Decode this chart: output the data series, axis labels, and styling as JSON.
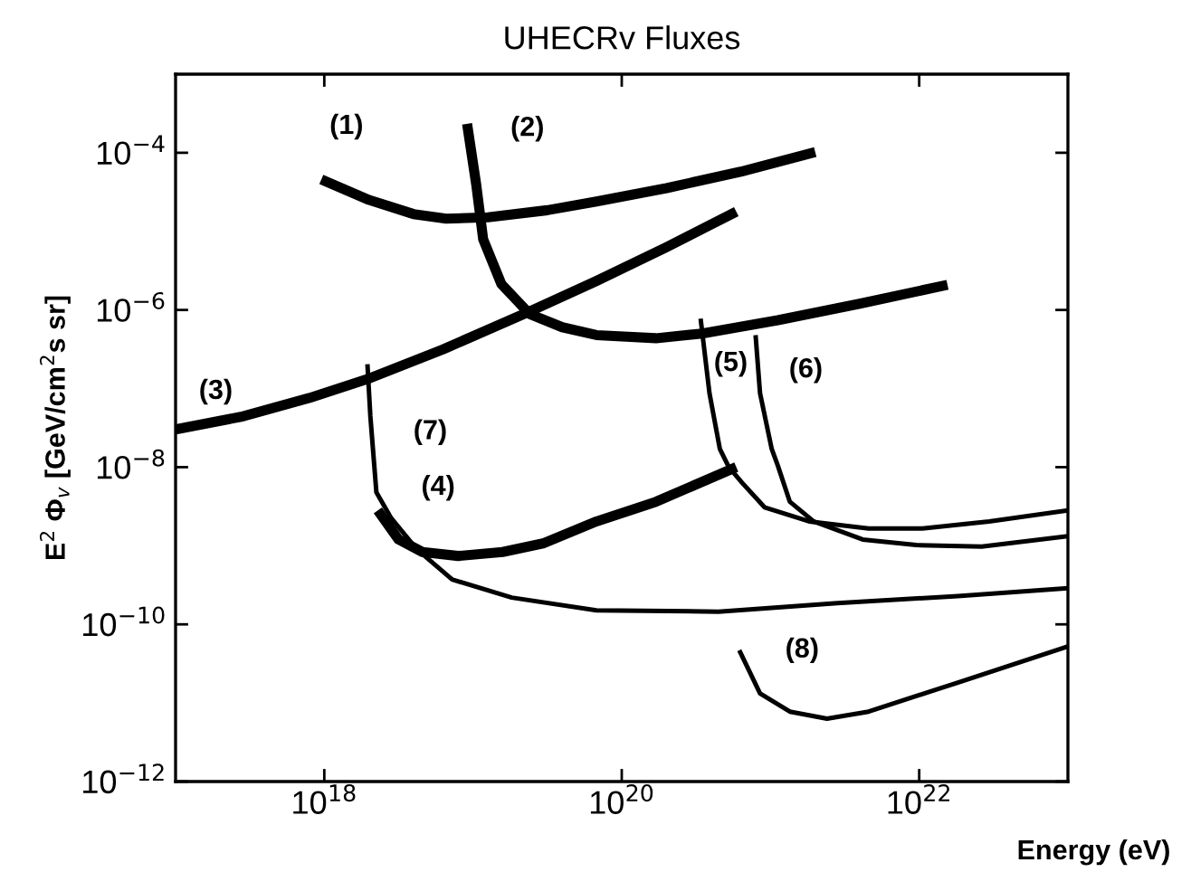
{
  "chart_data": {
    "type": "line",
    "title": "UHECRv Fluxes",
    "xlabel": "Energy (eV)",
    "ylabel": "E$^{2}$ Φ$_{v}$ [GeV/cm$^{2}$s sr]",
    "log": "xy",
    "grid": false,
    "marker": "none",
    "line_style": "solid",
    "xlim": [
      1e+17,
      1e+23
    ],
    "ylim": [
      1e-12,
      0.001
    ],
    "xticks": [
      {
        "value": 1e+18,
        "label": "10$^{18}$"
      },
      {
        "value": 1e+20,
        "label": "10$^{20}$"
      },
      {
        "value": 1e+22,
        "label": "10$^{22}$"
      }
    ],
    "yticks": [
      {
        "value": 1e-12,
        "label": "10$^{−12}$"
      },
      {
        "value": 1e-10,
        "label": "10$^{−10}$"
      },
      {
        "value": 1e-08,
        "label": "10$^{−8}$"
      },
      {
        "value": 1e-06,
        "label": "10$^{−6}$"
      },
      {
        "value": 0.0001,
        "label": "10$^{−4}$"
      }
    ],
    "series": [
      {
        "name": "(1)",
        "color": "#000000",
        "x": [
          9.55e+17,
          2e+18,
          3.98e+18,
          6.61e+18,
          1.26e+19,
          3.16e+19,
          6.76e+19,
          2e+20,
          6.31e+20,
          2e+21
        ],
        "values": [
          4.57e-05,
          2.51e-05,
          1.66e-05,
          1.45e-05,
          1.51e-05,
          1.86e-05,
          2.4e-05,
          3.55e-05,
          5.75e-05,
          0.000102
        ]
      },
      {
        "name": "(2)",
        "color": "#000000",
        "x": [
          9.12e+18,
          1.05e+19,
          1.17e+19,
          1.55e+19,
          2.4e+19,
          3.98e+19,
          6.76e+19,
          1.7e+20,
          3.47e+20,
          1.12e+21,
          3.98e+21,
          1.55e+22
        ],
        "values": [
          0.000234,
          3.98e-05,
          7.94e-06,
          2.14e-06,
          8.91e-07,
          6.03e-07,
          4.79e-07,
          4.37e-07,
          5.01e-07,
          7.41e-07,
          1.2e-06,
          2.09e-06
        ]
      },
      {
        "name": "(3)",
        "color": "#000000",
        "x": [
          1e+17,
          2.75e+17,
          7.94e+17,
          1.95e+18,
          6.31e+18,
          2.4e+19,
          6.76e+19,
          2e+20,
          5.89e+20
        ],
        "values": [
          3.02e-08,
          4.37e-08,
          7.59e-08,
          1.32e-07,
          3.16e-07,
          9.55e-07,
          2.34e-06,
          6.31e-06,
          1.78e-05
        ]
      },
      {
        "name": "(4)",
        "color": "#000000",
        "x": [
          2.29e+18,
          3.16e+18,
          4.57e+18,
          7.94e+18,
          1.58e+19,
          2.95e+19,
          6.76e+19,
          1.7e+20,
          5.89e+20
        ],
        "values": [
          2.82e-09,
          1.2e-09,
          8.32e-10,
          7.41e-10,
          8.32e-10,
          1.07e-09,
          2.04e-09,
          3.63e-09,
          1e-08
        ]
      },
      {
        "name": "(5)",
        "color": "#000000",
        "x": [
          3.39e+20,
          3.89e+20,
          4.57e+20,
          5.25e+20,
          6.46e+20,
          9.12e+20,
          1.82e+21,
          4.57e+21,
          1.05e+22,
          2.95e+22,
          1e+23
        ],
        "values": [
          7.76e-07,
          8.71e-08,
          1.7e-08,
          1e-08,
          6.31e-09,
          3.09e-09,
          2.04e-09,
          1.66e-09,
          1.66e-09,
          2.04e-09,
          2.82e-09
        ]
      },
      {
        "name": "(6)",
        "color": "#000000",
        "x": [
          7.94e+20,
          8.51e+20,
          1.02e+21,
          1.12e+21,
          1.35e+21,
          1.95e+21,
          4.17e+21,
          9.55e+21,
          2.63e+22,
          1e+23
        ],
        "values": [
          4.79e-07,
          8.71e-08,
          1.7e-08,
          1.05e-08,
          3.63e-09,
          2.04e-09,
          1.2e-09,
          1.02e-09,
          9.77e-10,
          1.32e-09
        ]
      },
      {
        "name": "(7)",
        "color": "#000000",
        "x": [
          1.95e+18,
          2.04e+18,
          2.24e+18,
          2.82e+18,
          4.17e+18,
          7.24e+18,
          1.82e+19,
          6.76e+19,
          4.47e+20,
          2.82e+21,
          1.82e+22,
          1e+23
        ],
        "values": [
          2.04e-07,
          4.47e-08,
          4.79e-09,
          2.24e-09,
          9.12e-10,
          3.72e-10,
          2.19e-10,
          1.51e-10,
          1.45e-10,
          1.86e-10,
          2.29e-10,
          2.88e-10
        ]
      },
      {
        "name": "(8)",
        "color": "#000000",
        "x": [
          6.17e+20,
          8.51e+20,
          1.35e+21,
          2.4e+21,
          4.57e+21,
          1.82e+22,
          1e+23
        ],
        "values": [
          4.68e-11,
          1.32e-11,
          7.76e-12,
          6.31e-12,
          7.76e-12,
          1.82e-11,
          5.25e-11
        ]
      }
    ]
  }
}
